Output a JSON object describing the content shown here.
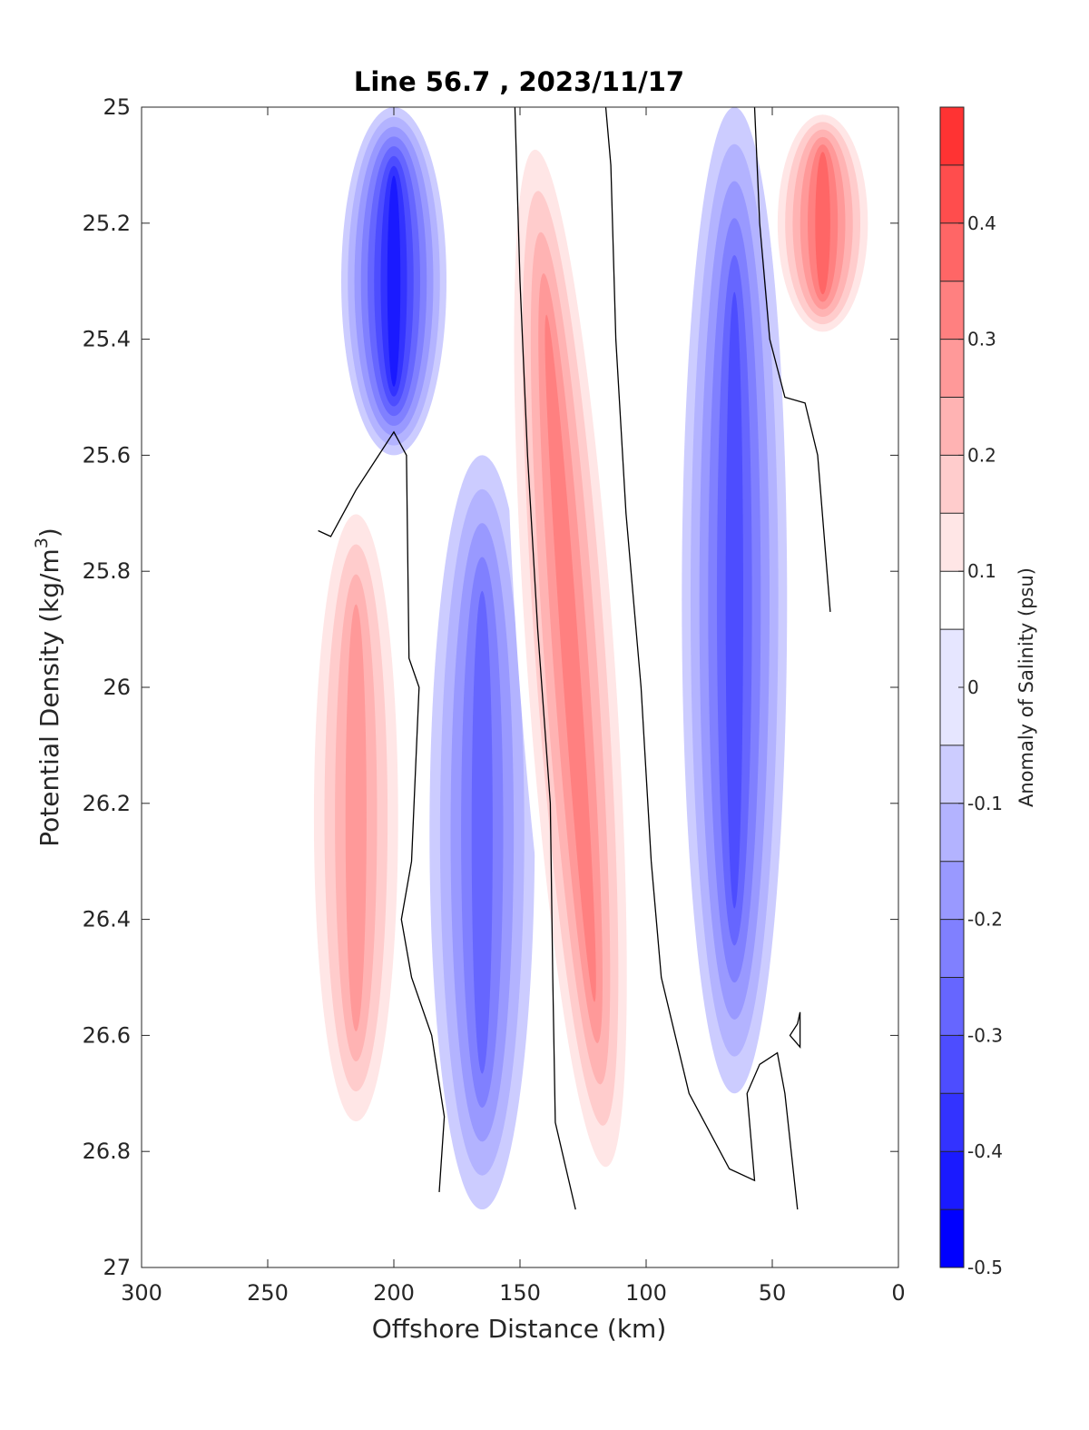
{
  "chart_data": {
    "type": "contour",
    "title": "Line 56.7 , 2023/11/17",
    "xlabel": "Offshore Distance (km)",
    "ylabel_prefix": "Potential Density (kg/m",
    "ylabel_sup": "3",
    "ylabel_suffix": ")",
    "xlim": [
      300,
      0
    ],
    "x_reversed": true,
    "ylim": [
      25,
      27
    ],
    "y_reversed": true,
    "xticks": [
      300,
      250,
      200,
      150,
      100,
      50,
      0
    ],
    "yticks": [
      25,
      25.2,
      25.4,
      25.6,
      25.8,
      26,
      26.2,
      26.4,
      26.6,
      26.8,
      27
    ],
    "colorbar": {
      "label": "Anomaly of Salinity (psu)",
      "range": [
        -0.5,
        0.5
      ],
      "levels": [
        -0.5,
        -0.45,
        -0.4,
        -0.35,
        -0.3,
        -0.25,
        -0.2,
        -0.15,
        -0.1,
        -0.05,
        0.05,
        0.1,
        0.15,
        0.2,
        0.25,
        0.3,
        0.35,
        0.4,
        0.45,
        0.5
      ],
      "ticks": [
        -0.5,
        -0.4,
        -0.3,
        -0.2,
        -0.1,
        0,
        0.1,
        0.2,
        0.3,
        0.4
      ],
      "colors": [
        "#0000ff",
        "#1a1aff",
        "#3333ff",
        "#4d4dff",
        "#6666ff",
        "#8080ff",
        "#9999ff",
        "#b3b3ff",
        "#ccccff",
        "#e6e6ff",
        "#ffffff",
        "#ffe6e6",
        "#ffcccc",
        "#ffb3b3",
        "#ff9999",
        "#ff8080",
        "#ff6666",
        "#ff4d4d",
        "#ff3333",
        "#ff1a1a"
      ]
    },
    "data_extent": {
      "x": [
        230,
        15
      ],
      "y": [
        25,
        26.9
      ]
    },
    "features": [
      {
        "sign": "negative",
        "x_center": 200,
        "y_range": [
          25,
          25.6
        ],
        "min_value": -0.4
      },
      {
        "sign": "positive",
        "x_center": 215,
        "y_range": [
          25.65,
          26.8
        ],
        "max_value": 0.25
      },
      {
        "sign": "negative",
        "x_center": 165,
        "y_range": [
          25.6,
          26.9
        ],
        "min_value": -0.25
      },
      {
        "sign": "positive",
        "x_center": 130,
        "y_range": [
          25,
          26.9
        ],
        "max_value": 0.3
      },
      {
        "sign": "negative",
        "x_center": 65,
        "y_range": [
          25,
          26.7
        ],
        "min_value": -0.3
      },
      {
        "sign": "positive",
        "x_center": 30,
        "y_range": [
          25,
          25.4
        ],
        "max_value": 0.35
      }
    ],
    "zero_contour": {
      "color": "#000000",
      "lines": [
        [
          [
            230,
            25.73
          ],
          [
            225,
            25.74
          ],
          [
            215,
            25.66
          ],
          [
            200,
            25.56
          ],
          [
            195,
            25.6
          ],
          [
            194,
            25.95
          ],
          [
            190,
            26
          ],
          [
            193,
            26.3
          ],
          [
            197,
            26.4
          ],
          [
            193,
            26.5
          ],
          [
            185,
            26.6
          ],
          [
            180,
            26.74
          ],
          [
            182,
            26.87
          ]
        ],
        [
          [
            152,
            25
          ],
          [
            150,
            25.3
          ],
          [
            147,
            25.6
          ],
          [
            143,
            25.9
          ],
          [
            138,
            26.2
          ],
          [
            137,
            26.5
          ],
          [
            136,
            26.75
          ],
          [
            128,
            26.9
          ]
        ],
        [
          [
            116,
            25
          ],
          [
            114,
            25.1
          ],
          [
            112,
            25.4
          ],
          [
            108,
            25.7
          ],
          [
            102,
            26
          ],
          [
            98,
            26.3
          ],
          [
            94,
            26.5
          ],
          [
            83,
            26.7
          ],
          [
            67,
            26.83
          ],
          [
            57,
            26.85
          ],
          [
            60,
            26.7
          ],
          [
            55,
            26.65
          ],
          [
            48,
            26.63
          ],
          [
            45,
            26.7
          ],
          [
            40,
            26.9
          ]
        ],
        [
          [
            57,
            25
          ],
          [
            55,
            25.2
          ],
          [
            51,
            25.4
          ],
          [
            45,
            25.5
          ],
          [
            37,
            25.51
          ],
          [
            32,
            25.6
          ],
          [
            27,
            25.87
          ]
        ],
        [
          [
            39,
            26.56
          ],
          [
            40,
            26.58
          ],
          [
            43,
            26.6
          ],
          [
            39,
            26.62
          ],
          [
            39,
            26.56
          ]
        ]
      ]
    }
  }
}
